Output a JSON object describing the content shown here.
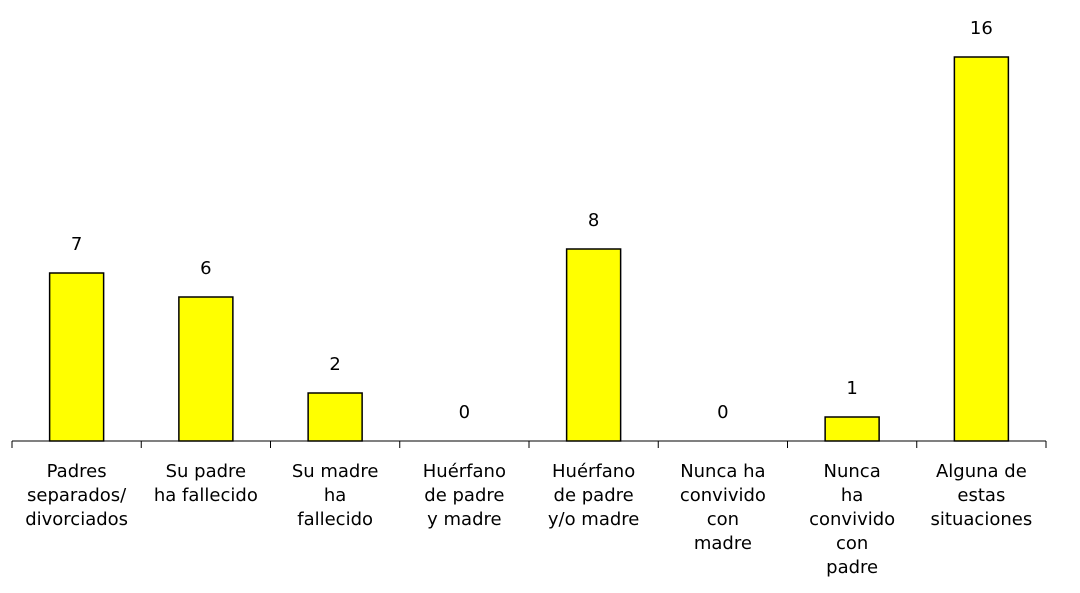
{
  "chart_data": {
    "type": "bar",
    "categories": [
      [
        "Padres",
        "separados/",
        "divorciados"
      ],
      [
        "Su padre",
        "ha fallecido"
      ],
      [
        "Su madre",
        "ha",
        "fallecido"
      ],
      [
        "Huérfano",
        "de padre",
        "y madre"
      ],
      [
        "Huérfano",
        "de padre",
        "y/o madre"
      ],
      [
        "Nunca ha",
        "convivido",
        "con",
        "madre"
      ],
      [
        "Nunca",
        "ha",
        "convivido",
        "con",
        "padre"
      ],
      [
        "Alguna de",
        "estas",
        "situaciones"
      ]
    ],
    "values": [
      7,
      6,
      2,
      0,
      8,
      0,
      1,
      16
    ],
    "data_labels": [
      "7",
      "6",
      "2",
      "0",
      "8",
      "0",
      "1",
      "16"
    ],
    "ylim": [
      0,
      16
    ],
    "grid": false,
    "legend": "none",
    "colors": {
      "bar_fill": "#FFFF00",
      "bar_stroke": "#000000",
      "axis": "#000000"
    },
    "title": "",
    "xlabel": "",
    "ylabel": ""
  }
}
